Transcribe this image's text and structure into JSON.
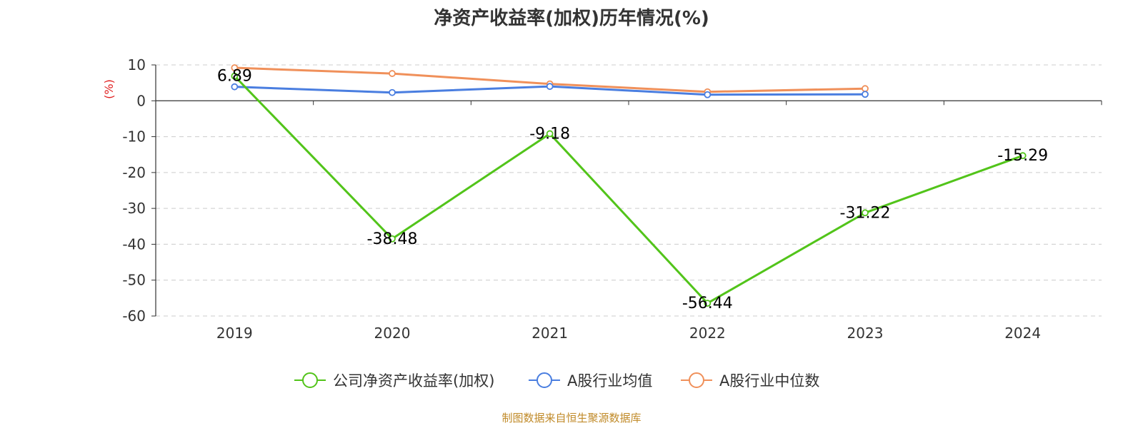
{
  "chart_data": {
    "type": "line",
    "title": "净资产收益率(加权)历年情况(%)",
    "ylabel": "(%)",
    "xlabel": "",
    "categories": [
      "2019",
      "2020",
      "2021",
      "2022",
      "2023",
      "2024"
    ],
    "ylim": [
      -60,
      10
    ],
    "yticks": [
      "10",
      "0",
      "-10",
      "-20",
      "-30",
      "-40",
      "-50",
      "-60"
    ],
    "ytick_values": [
      10,
      0,
      -10,
      -20,
      -30,
      -40,
      -50,
      -60
    ],
    "grid": true,
    "legend_position": "bottom",
    "series": [
      {
        "name": "公司净资产收益率(加权)",
        "color": "#52c41a",
        "values": [
          6.89,
          -38.48,
          -9.18,
          -56.44,
          -31.22,
          -15.29
        ],
        "labels": [
          "6.89",
          "-38.48",
          "-9.18",
          "-56.44",
          "-31.22",
          "-15.29"
        ]
      },
      {
        "name": "A股行业均值",
        "color": "#4a7ee0",
        "values": [
          3.9,
          2.3,
          4.0,
          1.7,
          1.8,
          null
        ]
      },
      {
        "name": "A股行业中位数",
        "color": "#f0905a",
        "values": [
          9.2,
          7.6,
          4.7,
          2.5,
          3.4,
          null
        ]
      }
    ]
  },
  "source": {
    "text": "制图数据来自恒生聚源数据库",
    "color": "#c08a28"
  },
  "ylabel_color": "#e02020"
}
